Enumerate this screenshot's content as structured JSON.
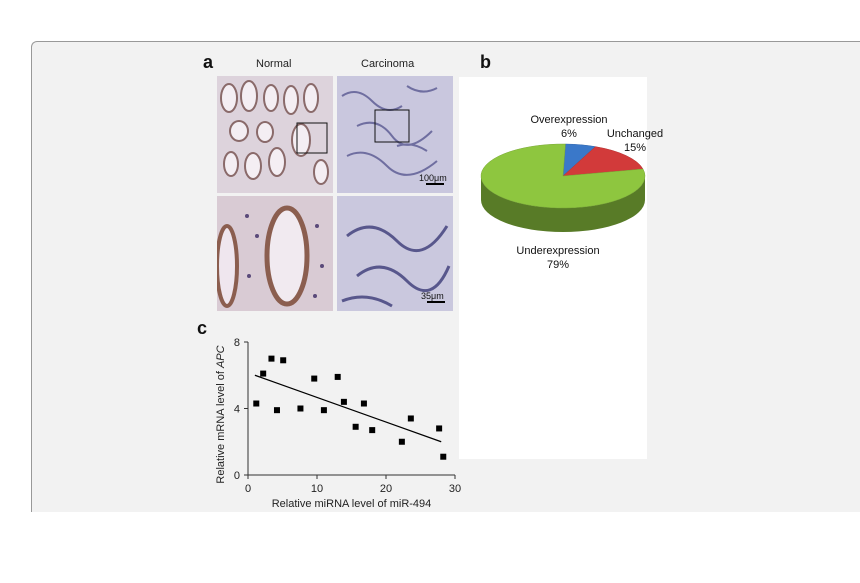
{
  "panels": {
    "a": {
      "letter": "a",
      "col_labels": [
        "Normal",
        "Carcinoma"
      ],
      "scale_bars": [
        "100μm",
        "35μm"
      ]
    },
    "b": {
      "letter": "b"
    },
    "c": {
      "letter": "c"
    }
  },
  "colors": {
    "tissue_normal": "#d8cdd6",
    "tissue_carcinoma": "#c6c4dc",
    "pie_underexpression": "#8ec63f",
    "pie_unchanged": "#d23a3a",
    "pie_overexpression": "#3a78c9"
  },
  "chart_data": [
    {
      "type": "pie",
      "style": "3d",
      "slices": [
        {
          "name": "Overexpression",
          "value": 6,
          "label": "6%",
          "color": "#3a78c9"
        },
        {
          "name": "Unchanged",
          "value": 15,
          "label": "15%",
          "color": "#d23a3a"
        },
        {
          "name": "Underexpression",
          "value": 79,
          "label": "79%",
          "color": "#8ec63f"
        }
      ]
    },
    {
      "type": "scatter",
      "xlabel": "Relative miRNA level of miR-494",
      "ylabel": "Relative mRNA level of APC",
      "xlim": [
        0,
        30
      ],
      "ylim": [
        0,
        8
      ],
      "xticks": [
        0,
        10,
        20,
        30
      ],
      "yticks": [
        0,
        4,
        8
      ],
      "grid": false,
      "points": [
        {
          "x": 1.2,
          "y": 4.3
        },
        {
          "x": 2.2,
          "y": 6.1
        },
        {
          "x": 3.4,
          "y": 7.0
        },
        {
          "x": 4.2,
          "y": 3.9
        },
        {
          "x": 5.1,
          "y": 6.9
        },
        {
          "x": 7.6,
          "y": 4.0
        },
        {
          "x": 9.6,
          "y": 5.8
        },
        {
          "x": 11.0,
          "y": 3.9
        },
        {
          "x": 13.0,
          "y": 5.9
        },
        {
          "x": 13.9,
          "y": 4.4
        },
        {
          "x": 15.6,
          "y": 2.9
        },
        {
          "x": 16.8,
          "y": 4.3
        },
        {
          "x": 18.0,
          "y": 2.7
        },
        {
          "x": 22.3,
          "y": 2.0
        },
        {
          "x": 23.6,
          "y": 3.4
        },
        {
          "x": 27.7,
          "y": 2.8
        },
        {
          "x": 28.3,
          "y": 1.1
        }
      ],
      "trendline": {
        "x": [
          1.0,
          28.0
        ],
        "y": [
          6.0,
          2.0
        ]
      }
    }
  ]
}
